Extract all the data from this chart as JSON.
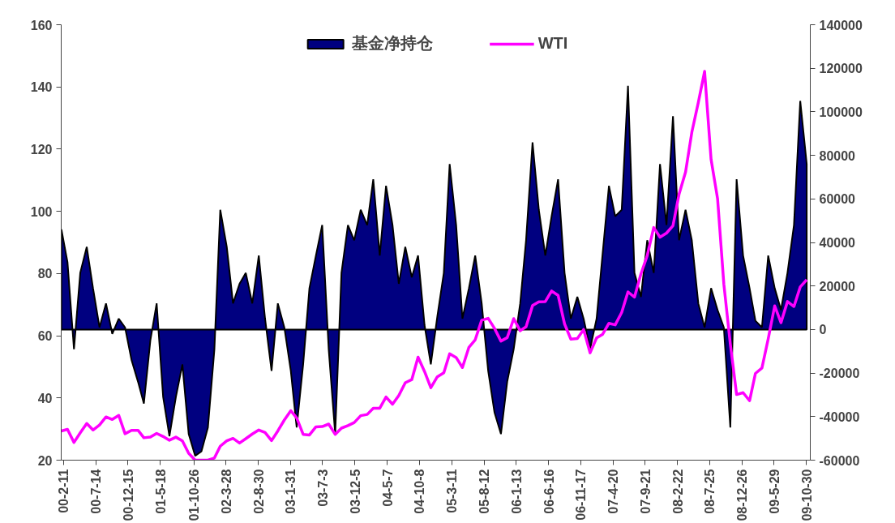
{
  "chart_data": {
    "type": "line",
    "x": [
      "2000-02",
      "2000-03",
      "2000-04",
      "2000-05",
      "2000-06",
      "2000-07",
      "2000-08",
      "2000-09",
      "2000-10",
      "2000-11",
      "2000-12",
      "2001-01",
      "2001-02",
      "2001-03",
      "2001-04",
      "2001-05",
      "2001-06",
      "2001-07",
      "2001-08",
      "2001-09",
      "2001-10",
      "2001-11",
      "2001-12",
      "2002-01",
      "2002-02",
      "2002-03",
      "2002-04",
      "2002-05",
      "2002-06",
      "2002-07",
      "2002-08",
      "2002-09",
      "2002-10",
      "2002-11",
      "2002-12",
      "2003-01",
      "2003-02",
      "2003-03",
      "2003-04",
      "2003-05",
      "2003-06",
      "2003-07",
      "2003-08",
      "2003-09",
      "2003-10",
      "2003-11",
      "2003-12",
      "2004-01",
      "2004-02",
      "2004-03",
      "2004-04",
      "2004-05",
      "2004-06",
      "2004-07",
      "2004-08",
      "2004-09",
      "2004-10",
      "2004-11",
      "2004-12",
      "2005-01",
      "2005-02",
      "2005-03",
      "2005-04",
      "2005-05",
      "2005-06",
      "2005-07",
      "2005-08",
      "2005-09",
      "2005-10",
      "2005-11",
      "2005-12",
      "2006-01",
      "2006-02",
      "2006-03",
      "2006-04",
      "2006-05",
      "2006-06",
      "2006-07",
      "2006-08",
      "2006-09",
      "2006-10",
      "2006-11",
      "2006-12",
      "2007-01",
      "2007-02",
      "2007-03",
      "2007-04",
      "2007-05",
      "2007-06",
      "2007-07",
      "2007-08",
      "2007-09",
      "2007-10",
      "2007-11",
      "2007-12",
      "2008-01",
      "2008-02",
      "2008-03",
      "2008-04",
      "2008-05",
      "2008-06",
      "2008-07",
      "2008-08",
      "2008-09",
      "2008-10",
      "2008-11",
      "2008-12",
      "2009-01",
      "2009-02",
      "2009-03",
      "2009-04",
      "2009-05",
      "2009-06",
      "2009-07",
      "2009-08",
      "2009-09",
      "2009-10",
      "2009-11"
    ],
    "series": [
      {
        "name": "基金净持仓",
        "type": "area",
        "axis": "y2",
        "color": "#000080",
        "values": [
          46000,
          31000,
          -9000,
          26000,
          38000,
          19000,
          1000,
          12000,
          -2000,
          5000,
          1000,
          -14000,
          -24000,
          -34000,
          -5000,
          12000,
          -31000,
          -49000,
          -31000,
          -16000,
          -48000,
          -58000,
          -56000,
          -45000,
          -9000,
          55000,
          38000,
          12000,
          21000,
          26000,
          12000,
          34000,
          5000,
          -19000,
          12000,
          1000,
          -19000,
          -45000,
          -16000,
          19000,
          34000,
          48000,
          -9000,
          -48000,
          26000,
          48000,
          41000,
          55000,
          48000,
          69000,
          34000,
          66000,
          48000,
          21000,
          38000,
          24000,
          34000,
          2000,
          -16000,
          6000,
          26000,
          76000,
          48000,
          5000,
          19000,
          34000,
          12000,
          -19000,
          -38000,
          -48000,
          -24000,
          -9000,
          12000,
          41000,
          86000,
          55000,
          34000,
          52000,
          69000,
          26000,
          5000,
          15000,
          5000,
          -9000,
          5000,
          34000,
          66000,
          52000,
          55000,
          112000,
          26000,
          15000,
          41000,
          26000,
          76000,
          48000,
          98000,
          41000,
          55000,
          41000,
          12000,
          1000,
          19000,
          9000,
          1000,
          -45000,
          69000,
          34000,
          19000,
          4000,
          1000,
          34000,
          19000,
          9000,
          26000,
          48000,
          105000,
          76000
        ]
      },
      {
        "name": "WTI",
        "axis": "y",
        "color": "#ff00ff",
        "values": [
          29.4,
          29.9,
          25.7,
          28.8,
          31.8,
          29.7,
          31.3,
          33.9,
          33.1,
          34.4,
          28.5,
          29.6,
          29.6,
          27.2,
          27.4,
          28.6,
          27.6,
          26.4,
          27.4,
          26.2,
          22.2,
          20.0,
          20.0,
          20.0,
          20.7,
          24.5,
          26.2,
          27.0,
          25.5,
          26.9,
          28.4,
          29.7,
          28.9,
          26.3,
          29.4,
          32.9,
          35.9,
          33.6,
          28.3,
          28.1,
          30.7,
          30.8,
          31.6,
          28.3,
          30.3,
          31.1,
          32.1,
          34.3,
          34.7,
          36.7,
          36.7,
          40.3,
          38.0,
          40.8,
          44.9,
          45.9,
          53.1,
          48.5,
          43.3,
          46.8,
          48.1,
          54.2,
          53.0,
          49.8,
          56.3,
          58.7,
          65.0,
          65.6,
          62.4,
          58.3,
          59.4,
          65.5,
          61.6,
          62.9,
          69.7,
          70.9,
          71.0,
          74.4,
          73.0,
          63.8,
          58.9,
          59.1,
          62.0,
          54.5,
          59.3,
          60.4,
          64.0,
          63.5,
          67.5,
          74.1,
          72.4,
          79.9,
          85.8,
          94.8,
          91.7,
          93.0,
          95.4,
          105.5,
          112.6,
          125.4,
          135.0,
          145.0,
          116.7,
          104.1,
          76.6,
          57.3,
          41.1,
          41.7,
          39.1,
          47.9,
          49.6,
          59.0,
          69.6,
          64.2,
          71.0,
          69.4,
          75.7,
          78.0
        ]
      }
    ],
    "xlim": [
      "2000-01-31",
      "2009-11-18"
    ],
    "xticks": [
      {
        "value": "2000-02-11",
        "label": "00-2-11"
      },
      {
        "value": "2000-07-14",
        "label": "00-7-14"
      },
      {
        "value": "2000-12-15",
        "label": "00-12-15"
      },
      {
        "value": "2001-05-18",
        "label": "01-5-18"
      },
      {
        "value": "2001-10-26",
        "label": "01-10-26"
      },
      {
        "value": "2002-03-28",
        "label": "02-3-28"
      },
      {
        "value": "2002-08-30",
        "label": "02-8-30"
      },
      {
        "value": "2003-01-31",
        "label": "03-1-31"
      },
      {
        "value": "2003-07-03",
        "label": "03-7-3"
      },
      {
        "value": "2003-12-05",
        "label": "03-12-5"
      },
      {
        "value": "2004-05-07",
        "label": "04-5-7"
      },
      {
        "value": "2004-10-08",
        "label": "04-10-8"
      },
      {
        "value": "2005-03-11",
        "label": "05-3-11"
      },
      {
        "value": "2005-08-12",
        "label": "05-8-12"
      },
      {
        "value": "2006-01-13",
        "label": "06-1-13"
      },
      {
        "value": "2006-06-16",
        "label": "06-6-16"
      },
      {
        "value": "2006-11-17",
        "label": "06-11-17"
      },
      {
        "value": "2007-04-20",
        "label": "07-4-20"
      },
      {
        "value": "2007-09-21",
        "label": "07-9-21"
      },
      {
        "value": "2008-02-22",
        "label": "08-2-22"
      },
      {
        "value": "2008-07-25",
        "label": "08-7-25"
      },
      {
        "value": "2008-12-26",
        "label": "08-12-26"
      },
      {
        "value": "2009-05-29",
        "label": "09-5-29"
      },
      {
        "value": "2009-10-30",
        "label": "09-10-30"
      }
    ],
    "ylim": [
      20,
      160
    ],
    "yticks": [
      20,
      40,
      60,
      80,
      100,
      120,
      140,
      160
    ],
    "y2lim": [
      -60000,
      140000
    ],
    "y2ticks": [
      -60000,
      -40000,
      -20000,
      0,
      20000,
      40000,
      60000,
      80000,
      100000,
      120000,
      140000
    ],
    "legend": "top",
    "grid": false
  }
}
